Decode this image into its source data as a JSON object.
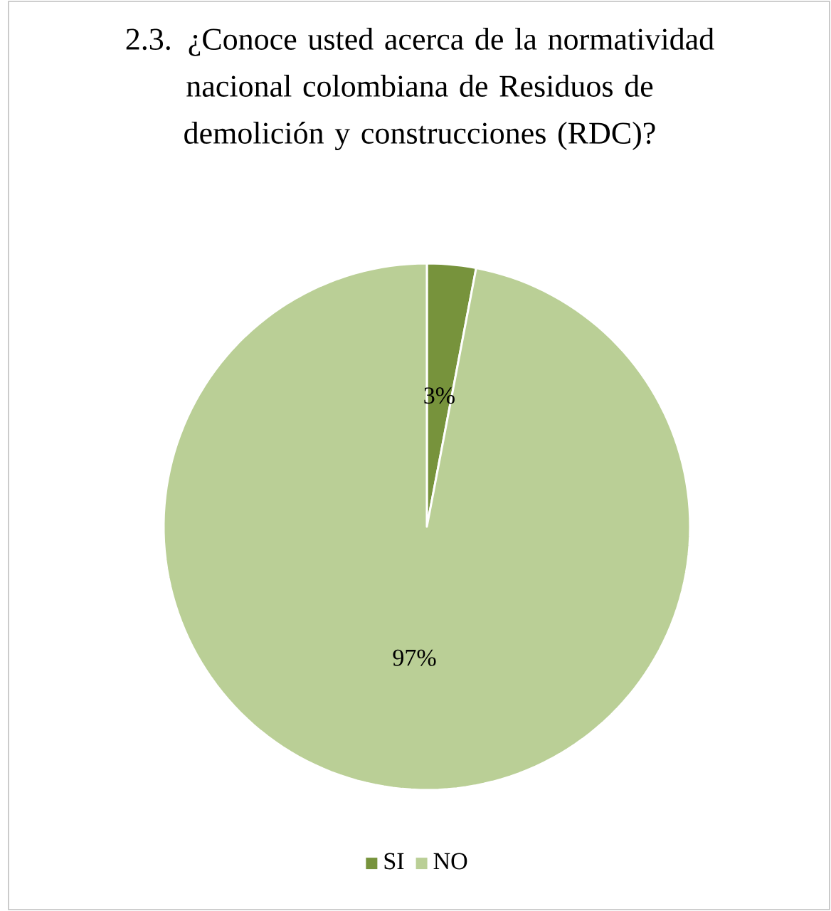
{
  "chart_data": {
    "type": "pie",
    "title": "2.3. ¿Conoce usted acerca de la normatividad nacional colombiana de Residuos de demolición y construcciones (RDC)?",
    "categories": [
      "SI",
      "NO"
    ],
    "values": [
      3,
      97
    ],
    "colors": [
      "#77933c",
      "#bacf96"
    ],
    "value_labels": [
      "3%",
      "97%"
    ],
    "legend": "bottom"
  }
}
